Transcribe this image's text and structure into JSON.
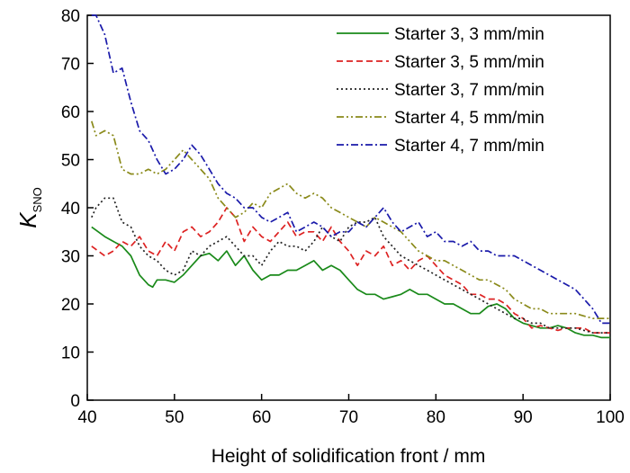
{
  "chart_data": {
    "type": "line",
    "xlabel": "Height of solidification front / mm",
    "ylabel_main": "K",
    "ylabel_sub": "SNO",
    "xlim": [
      40,
      100
    ],
    "ylim": [
      0,
      80
    ],
    "xticks": [
      "40",
      "50",
      "60",
      "70",
      "80",
      "90",
      "100"
    ],
    "yticks": [
      "0",
      "10",
      "20",
      "30",
      "40",
      "50",
      "60",
      "70",
      "80"
    ],
    "grid": false,
    "legend_position": "top-right",
    "series": [
      {
        "name": "Starter 3, 3 mm/min",
        "color": "#1a8a1a",
        "dash": "solid",
        "x": [
          40.5,
          42,
          43,
          44,
          45,
          46,
          47,
          47.5,
          48,
          49,
          50,
          51,
          52,
          53,
          54,
          55,
          56,
          57,
          58,
          59,
          60,
          61,
          62,
          63,
          64,
          65,
          66,
          67,
          68,
          69,
          70,
          71,
          72,
          73,
          74,
          75,
          76,
          77,
          78,
          79,
          80,
          81,
          82,
          83,
          84,
          85,
          86,
          87,
          88,
          89,
          90,
          91,
          92,
          93,
          94,
          95,
          96,
          97,
          98,
          99,
          100
        ],
        "y": [
          36,
          34,
          33,
          32,
          30,
          26,
          24,
          23.5,
          25,
          25,
          24.5,
          26,
          28,
          30,
          30.5,
          29,
          31,
          28,
          30,
          27,
          25,
          26,
          26,
          27,
          27,
          28,
          29,
          27,
          28,
          27,
          25,
          23,
          22,
          22,
          21,
          21.5,
          22,
          23,
          22,
          22,
          21,
          20,
          20,
          19,
          18,
          18,
          19.5,
          20,
          19,
          17,
          16,
          15.5,
          15,
          15,
          15.5,
          15,
          14,
          13.5,
          13.5,
          13,
          13
        ]
      },
      {
        "name": "Starter 3, 5 mm/min",
        "color": "#dd2222",
        "dash": "dashed",
        "x": [
          40.5,
          42,
          43,
          44,
          45,
          46,
          47,
          48,
          49,
          50,
          51,
          52,
          53,
          54,
          55,
          56,
          57,
          58,
          59,
          60,
          61,
          62,
          63,
          64,
          65,
          66,
          67,
          68,
          69,
          70,
          71,
          72,
          73,
          74,
          75,
          76,
          77,
          78,
          79,
          80,
          81,
          82,
          83,
          84,
          85,
          86,
          87,
          88,
          89,
          90,
          91,
          92,
          93,
          94,
          95,
          96,
          97,
          98,
          99,
          100
        ],
        "y": [
          32,
          30,
          31,
          33,
          32,
          34,
          31,
          30,
          33,
          31,
          35,
          36,
          34,
          35,
          37,
          40,
          38,
          33,
          36,
          34,
          33,
          35,
          37,
          34,
          35,
          35,
          33,
          36,
          33,
          31,
          28,
          31,
          30,
          32,
          28,
          29,
          27,
          29,
          30,
          28,
          26,
          25,
          24,
          22,
          22,
          21,
          21,
          20,
          18,
          17,
          15,
          15.5,
          15,
          14.5,
          15,
          15,
          15,
          14,
          14,
          14
        ]
      },
      {
        "name": "Starter 3, 7 mm/min",
        "color": "#222222",
        "dash": "dotted",
        "x": [
          40.5,
          41,
          42,
          43,
          44,
          45,
          46,
          47,
          48,
          49,
          50,
          51,
          52,
          53,
          54,
          55,
          56,
          57,
          58,
          59,
          60,
          61,
          62,
          63,
          64,
          65,
          66,
          67,
          68,
          69,
          70,
          71,
          72,
          73,
          74,
          75,
          76,
          77,
          78,
          79,
          80,
          81,
          82,
          83,
          84,
          85,
          86,
          87,
          88,
          89,
          90,
          91,
          92,
          93,
          94,
          95,
          96,
          97,
          98,
          99,
          100
        ],
        "y": [
          38,
          40,
          42,
          42,
          37,
          36,
          32,
          30,
          29,
          27,
          26,
          27,
          31,
          30,
          32,
          33,
          34,
          32,
          30,
          30,
          28,
          31,
          33,
          32,
          32,
          31,
          33,
          36,
          34,
          33,
          36,
          37,
          37,
          38,
          34,
          32,
          30,
          29,
          28,
          27,
          26,
          25,
          24,
          23,
          22,
          21,
          20,
          19,
          18,
          17,
          17,
          16,
          16,
          15,
          15,
          15,
          15,
          14.5,
          14,
          14,
          14
        ]
      },
      {
        "name": "Starter 4, 5 mm/min",
        "color": "#8a8a1a",
        "dash": "dashdotdot",
        "x": [
          40.5,
          41,
          42,
          43,
          44,
          45,
          46,
          47,
          48,
          49,
          50,
          51,
          52,
          53,
          54,
          55,
          56,
          57,
          58,
          59,
          60,
          61,
          62,
          63,
          64,
          65,
          66,
          67,
          68,
          69,
          70,
          71,
          72,
          73,
          74,
          75,
          76,
          77,
          78,
          79,
          80,
          81,
          82,
          83,
          84,
          85,
          86,
          87,
          88,
          89,
          90,
          91,
          92,
          93,
          94,
          95,
          96,
          97,
          98,
          99,
          100
        ],
        "y": [
          58,
          55,
          56,
          55,
          48,
          47,
          47,
          48,
          47,
          48,
          50,
          52,
          50,
          48,
          46,
          42,
          40,
          38,
          39,
          41,
          40,
          43,
          44,
          45,
          43,
          42,
          43,
          42,
          40,
          39,
          38,
          37,
          36,
          38,
          37,
          36,
          35,
          33,
          31,
          30,
          29,
          29,
          28,
          27,
          26,
          25,
          25,
          24,
          23,
          21,
          20,
          19,
          19,
          18,
          18,
          18,
          18,
          17.5,
          17,
          17,
          17
        ]
      },
      {
        "name": "Starter 4, 7 mm/min",
        "color": "#1a1aaa",
        "dash": "dashdot",
        "x": [
          40.5,
          41,
          42,
          43,
          44,
          45,
          46,
          47,
          48,
          49,
          50,
          51,
          52,
          53,
          54,
          55,
          56,
          57,
          58,
          59,
          60,
          61,
          62,
          63,
          64,
          65,
          66,
          67,
          68,
          69,
          70,
          71,
          72,
          73,
          74,
          75,
          76,
          77,
          78,
          79,
          80,
          81,
          82,
          83,
          84,
          85,
          86,
          87,
          88,
          89,
          90,
          91,
          92,
          93,
          94,
          95,
          96,
          97,
          98,
          99,
          100
        ],
        "y": [
          80,
          80,
          76,
          68,
          69,
          62,
          56,
          54,
          50,
          47,
          48,
          50,
          53,
          51,
          48,
          45,
          43,
          42,
          40,
          40,
          38,
          37,
          38,
          39,
          35,
          36,
          37,
          36,
          34,
          35,
          35,
          37,
          36,
          38,
          40,
          37,
          35,
          36,
          37,
          34,
          35,
          33,
          33,
          32,
          33,
          31,
          31,
          30,
          30,
          30,
          29,
          28,
          27,
          26,
          25,
          24,
          23,
          21,
          19,
          16,
          16
        ]
      }
    ]
  }
}
